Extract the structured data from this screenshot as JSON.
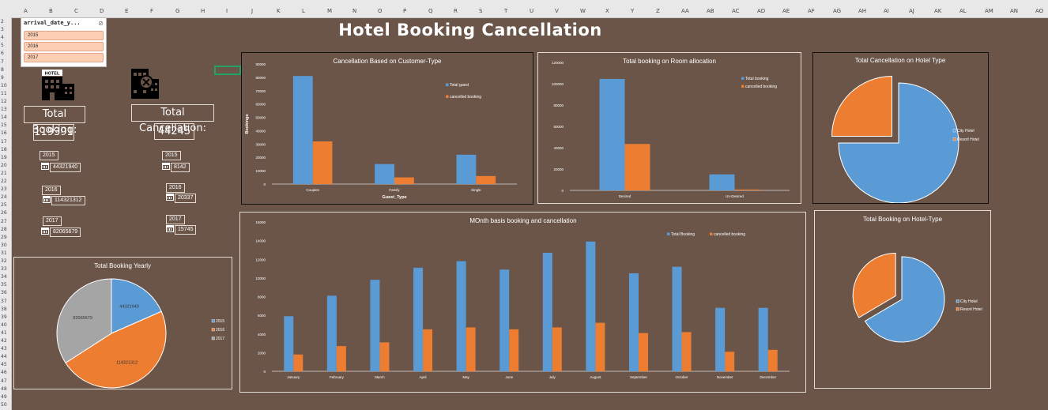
{
  "colors": {
    "blue": "#5b9bd5",
    "orange": "#ed7d31",
    "gray": "#a5a5a5",
    "bg": "#6b5549"
  },
  "sheet": {
    "columns": [
      "A",
      "B",
      "C",
      "D",
      "E",
      "F",
      "G",
      "H",
      "I",
      "J",
      "K",
      "L",
      "M",
      "N",
      "O",
      "P",
      "Q",
      "R",
      "S",
      "T",
      "U",
      "V",
      "W",
      "X",
      "Y",
      "Z",
      "AA",
      "AB",
      "AC",
      "AD",
      "AE",
      "AF",
      "AG",
      "AH",
      "AI",
      "AJ",
      "AK",
      "AL",
      "AM",
      "AN",
      "AO"
    ],
    "rows": [
      "2",
      "3",
      "4",
      "5",
      "6",
      "7",
      "8",
      "9",
      "10",
      "11",
      "12",
      "13",
      "14",
      "15",
      "16",
      "17",
      "18",
      "19",
      "20",
      "21",
      "22",
      "23",
      "24",
      "25",
      "26",
      "27",
      "28",
      "29",
      "30",
      "31",
      "32",
      "33",
      "34",
      "35",
      "36",
      "37",
      "38",
      "39",
      "40",
      "41",
      "42",
      "43",
      "44",
      "45",
      "46",
      "47",
      "48",
      "49",
      "50"
    ]
  },
  "dashboard": {
    "title": "Hotel Booking Cancellation"
  },
  "slicer": {
    "header": "arrival_date_y...",
    "filter_icon": "filter-clear-icon",
    "items": [
      "2015",
      "2016",
      "2017"
    ]
  },
  "kpis": {
    "total_booking_label": "Total Booking:",
    "total_booking_value": "119391",
    "total_cancellation_label": "Total Cancellation:",
    "total_cancellation_value": "44245",
    "years": [
      {
        "year": "2015",
        "booking": "44321940",
        "cancel": "8142"
      },
      {
        "year": "2016",
        "booking": "114321312",
        "cancel": "20337"
      },
      {
        "year": "2017",
        "booking": "82065679",
        "cancel": "15745"
      }
    ]
  },
  "chart_data": [
    {
      "id": "customer_type",
      "type": "bar",
      "title": "Cancellation Based on Customer-Type",
      "xlabel": "Guest_Type",
      "ylabel": "Bookings",
      "categories": [
        "Couples",
        "Family",
        "Single"
      ],
      "series": [
        {
          "name": "Total guest",
          "values": [
            81000,
            15000,
            22000
          ]
        },
        {
          "name": "cancelled booking",
          "values": [
            32000,
            5000,
            6000
          ]
        }
      ],
      "ylim": [
        0,
        90000
      ],
      "yticks": [
        "0",
        "10000",
        "20000",
        "30000",
        "40000",
        "50000",
        "60000",
        "70000",
        "80000",
        "90000"
      ],
      "legend": "right"
    },
    {
      "id": "room_allocation",
      "type": "bar",
      "title": "Total booking on Room allocation",
      "categories": [
        "Desired",
        "Un-Desired"
      ],
      "series": [
        {
          "name": "Total booking",
          "values": [
            104500,
            15000
          ]
        },
        {
          "name": "cancelled booking",
          "values": [
            43500,
            800
          ]
        }
      ],
      "ylim": [
        0,
        120000
      ],
      "yticks": [
        "0",
        "20000",
        "40000",
        "60000",
        "80000",
        "100000",
        "120000"
      ],
      "legend": "top-right"
    },
    {
      "id": "hotel_type_cancel",
      "type": "pie",
      "title": "Total Cancellation on Hotel Type",
      "labels": [
        "City Hotel",
        "Resort Hotel"
      ],
      "values": [
        75,
        25
      ],
      "legend": "right"
    },
    {
      "id": "yearly_booking",
      "type": "pie",
      "title": "Total Booking Yearly",
      "labels": [
        "2015",
        "2016",
        "2017"
      ],
      "values": [
        44321940,
        114321312,
        82065679
      ],
      "data_labels": [
        "44321940",
        "114321312",
        "82065679"
      ],
      "legend": "right"
    },
    {
      "id": "monthly",
      "type": "bar",
      "title": "MOnth basis booking and cancellation",
      "categories": [
        "January",
        "February",
        "March",
        "April",
        "May",
        "June",
        "July",
        "August",
        "September",
        "October",
        "November",
        "December"
      ],
      "series": [
        {
          "name": "Total Booking",
          "values": [
            5900,
            8100,
            9800,
            11100,
            11800,
            10900,
            12700,
            13900,
            10500,
            11200,
            6800,
            6800
          ]
        },
        {
          "name": "cancelled booking",
          "values": [
            1800,
            2700,
            3100,
            4500,
            4700,
            4500,
            4700,
            5200,
            4100,
            4200,
            2100,
            2300
          ]
        }
      ],
      "ylim": [
        0,
        16000
      ],
      "yticks": [
        "0",
        "2000",
        "4000",
        "6000",
        "8000",
        "10000",
        "12000",
        "14000",
        "16000"
      ],
      "legend": "top"
    },
    {
      "id": "hotel_type_booking",
      "type": "pie",
      "title": "Total Booking on Hotel-Type",
      "labels": [
        "City Hotel",
        "Resort Hotel"
      ],
      "values": [
        66.5,
        33.5
      ],
      "legend": "right"
    }
  ]
}
